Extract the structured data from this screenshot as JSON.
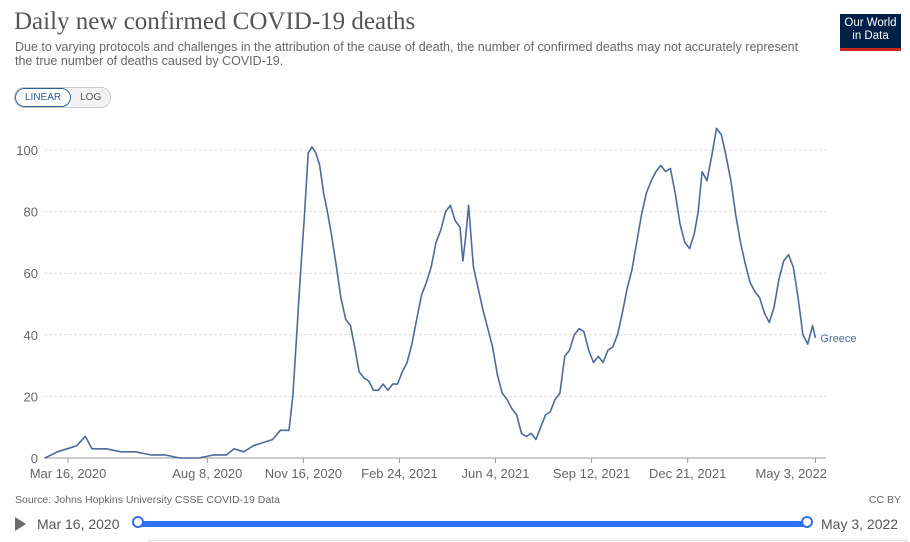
{
  "header": {
    "title": "Daily new confirmed COVID-19 deaths",
    "subtitle": "Due to varying protocols and challenges in the attribution of the cause of death, the number of confirmed deaths may not accurately represent the true number of deaths caused by COVID-19.",
    "logo_line1": "Our World",
    "logo_line2": "in Data"
  },
  "controls": {
    "linear": "LINEAR",
    "log": "LOG",
    "active": "LINEAR"
  },
  "footer": {
    "source": "Source: Johns Hopkins University CSSE COVID-19 Data",
    "license": "CC BY"
  },
  "timeline": {
    "start": "Mar 16, 2020",
    "end": "May 3, 2022"
  },
  "colors": {
    "line": "#4c6a9c",
    "grid": "#dddddd",
    "slider": "#2f6ff0"
  },
  "chart_data": {
    "type": "line",
    "title": "Daily new confirmed COVID-19 deaths",
    "xlabel": "",
    "ylabel": "",
    "ylim": [
      0,
      100
    ],
    "xlim": [
      "2020-02-20",
      "2022-05-14"
    ],
    "yticks": [
      0,
      20,
      40,
      60,
      80,
      100
    ],
    "xticks": [
      {
        "date": "2020-03-16",
        "label": "Mar 16, 2020"
      },
      {
        "date": "2020-08-08",
        "label": "Aug 8, 2020"
      },
      {
        "date": "2020-11-16",
        "label": "Nov 16, 2020"
      },
      {
        "date": "2021-02-24",
        "label": "Feb 24, 2021"
      },
      {
        "date": "2021-06-04",
        "label": "Jun 4, 2021"
      },
      {
        "date": "2021-09-12",
        "label": "Sep 12, 2021"
      },
      {
        "date": "2021-12-21",
        "label": "Dec 21, 2021"
      },
      {
        "date": "2022-05-03",
        "label": "May 3, 2022"
      }
    ],
    "grid": true,
    "series": [
      {
        "name": "Greece",
        "points": [
          [
            "2020-02-21",
            0
          ],
          [
            "2020-03-05",
            2
          ],
          [
            "2020-03-15",
            3
          ],
          [
            "2020-03-25",
            4
          ],
          [
            "2020-04-03",
            7
          ],
          [
            "2020-04-10",
            3
          ],
          [
            "2020-04-25",
            3
          ],
          [
            "2020-05-10",
            2
          ],
          [
            "2020-05-25",
            2
          ],
          [
            "2020-06-10",
            1
          ],
          [
            "2020-06-25",
            1
          ],
          [
            "2020-07-10",
            0
          ],
          [
            "2020-07-30",
            0
          ],
          [
            "2020-08-15",
            1
          ],
          [
            "2020-08-28",
            1
          ],
          [
            "2020-09-05",
            3
          ],
          [
            "2020-09-15",
            2
          ],
          [
            "2020-09-25",
            4
          ],
          [
            "2020-10-05",
            5
          ],
          [
            "2020-10-15",
            6
          ],
          [
            "2020-10-23",
            9
          ],
          [
            "2020-11-01",
            9
          ],
          [
            "2020-11-05",
            20
          ],
          [
            "2020-11-09",
            40
          ],
          [
            "2020-11-13",
            60
          ],
          [
            "2020-11-17",
            78
          ],
          [
            "2020-11-21",
            99
          ],
          [
            "2020-11-25",
            101
          ],
          [
            "2020-11-29",
            99
          ],
          [
            "2020-12-03",
            95
          ],
          [
            "2020-12-07",
            86
          ],
          [
            "2020-12-11",
            80
          ],
          [
            "2020-12-15",
            73
          ],
          [
            "2020-12-20",
            63
          ],
          [
            "2020-12-25",
            52
          ],
          [
            "2020-12-30",
            45
          ],
          [
            "2021-01-04",
            43
          ],
          [
            "2021-01-09",
            35
          ],
          [
            "2021-01-13",
            28
          ],
          [
            "2021-01-18",
            26
          ],
          [
            "2021-01-23",
            25
          ],
          [
            "2021-01-28",
            22
          ],
          [
            "2021-02-02",
            22
          ],
          [
            "2021-02-07",
            24
          ],
          [
            "2021-02-12",
            22
          ],
          [
            "2021-02-17",
            24
          ],
          [
            "2021-02-22",
            24
          ],
          [
            "2021-02-27",
            28
          ],
          [
            "2021-03-04",
            31
          ],
          [
            "2021-03-09",
            37
          ],
          [
            "2021-03-14",
            45
          ],
          [
            "2021-03-19",
            53
          ],
          [
            "2021-03-24",
            57
          ],
          [
            "2021-03-29",
            62
          ],
          [
            "2021-04-03",
            70
          ],
          [
            "2021-04-08",
            74
          ],
          [
            "2021-04-13",
            80
          ],
          [
            "2021-04-18",
            82
          ],
          [
            "2021-04-23",
            77
          ],
          [
            "2021-04-28",
            75
          ],
          [
            "2021-05-01",
            64
          ],
          [
            "2021-05-04",
            72
          ],
          [
            "2021-05-07",
            82
          ],
          [
            "2021-05-12",
            62
          ],
          [
            "2021-05-17",
            55
          ],
          [
            "2021-05-22",
            48
          ],
          [
            "2021-05-27",
            42
          ],
          [
            "2021-06-01",
            36
          ],
          [
            "2021-06-06",
            27
          ],
          [
            "2021-06-11",
            21
          ],
          [
            "2021-06-16",
            19
          ],
          [
            "2021-06-21",
            16
          ],
          [
            "2021-06-26",
            14
          ],
          [
            "2021-07-01",
            8
          ],
          [
            "2021-07-06",
            7
          ],
          [
            "2021-07-11",
            8
          ],
          [
            "2021-07-16",
            6
          ],
          [
            "2021-07-21",
            10
          ],
          [
            "2021-07-26",
            14
          ],
          [
            "2021-07-31",
            15
          ],
          [
            "2021-08-05",
            19
          ],
          [
            "2021-08-10",
            21
          ],
          [
            "2021-08-15",
            33
          ],
          [
            "2021-08-20",
            35
          ],
          [
            "2021-08-25",
            40
          ],
          [
            "2021-08-30",
            42
          ],
          [
            "2021-09-04",
            41
          ],
          [
            "2021-09-09",
            35
          ],
          [
            "2021-09-14",
            31
          ],
          [
            "2021-09-19",
            33
          ],
          [
            "2021-09-24",
            31
          ],
          [
            "2021-09-29",
            35
          ],
          [
            "2021-10-04",
            36
          ],
          [
            "2021-10-09",
            40
          ],
          [
            "2021-10-14",
            47
          ],
          [
            "2021-10-19",
            55
          ],
          [
            "2021-10-24",
            61
          ],
          [
            "2021-10-29",
            70
          ],
          [
            "2021-11-03",
            79
          ],
          [
            "2021-11-08",
            86
          ],
          [
            "2021-11-13",
            90
          ],
          [
            "2021-11-18",
            93
          ],
          [
            "2021-11-23",
            95
          ],
          [
            "2021-11-28",
            93
          ],
          [
            "2021-12-03",
            94
          ],
          [
            "2021-12-08",
            86
          ],
          [
            "2021-12-13",
            76
          ],
          [
            "2021-12-18",
            70
          ],
          [
            "2021-12-23",
            68
          ],
          [
            "2021-12-28",
            73
          ],
          [
            "2022-01-01",
            80
          ],
          [
            "2022-01-05",
            93
          ],
          [
            "2022-01-10",
            90
          ],
          [
            "2022-01-15",
            98
          ],
          [
            "2022-01-20",
            107
          ],
          [
            "2022-01-25",
            105
          ],
          [
            "2022-01-30",
            98
          ],
          [
            "2022-02-04",
            90
          ],
          [
            "2022-02-09",
            79
          ],
          [
            "2022-02-14",
            70
          ],
          [
            "2022-02-19",
            63
          ],
          [
            "2022-02-24",
            57
          ],
          [
            "2022-03-01",
            54
          ],
          [
            "2022-03-06",
            52
          ],
          [
            "2022-03-11",
            47
          ],
          [
            "2022-03-16",
            44
          ],
          [
            "2022-03-21",
            49
          ],
          [
            "2022-03-26",
            58
          ],
          [
            "2022-03-31",
            64
          ],
          [
            "2022-04-05",
            66
          ],
          [
            "2022-04-10",
            62
          ],
          [
            "2022-04-15",
            52
          ],
          [
            "2022-04-20",
            40
          ],
          [
            "2022-04-25",
            37
          ],
          [
            "2022-04-30",
            43
          ],
          [
            "2022-05-03",
            39
          ]
        ]
      }
    ]
  }
}
